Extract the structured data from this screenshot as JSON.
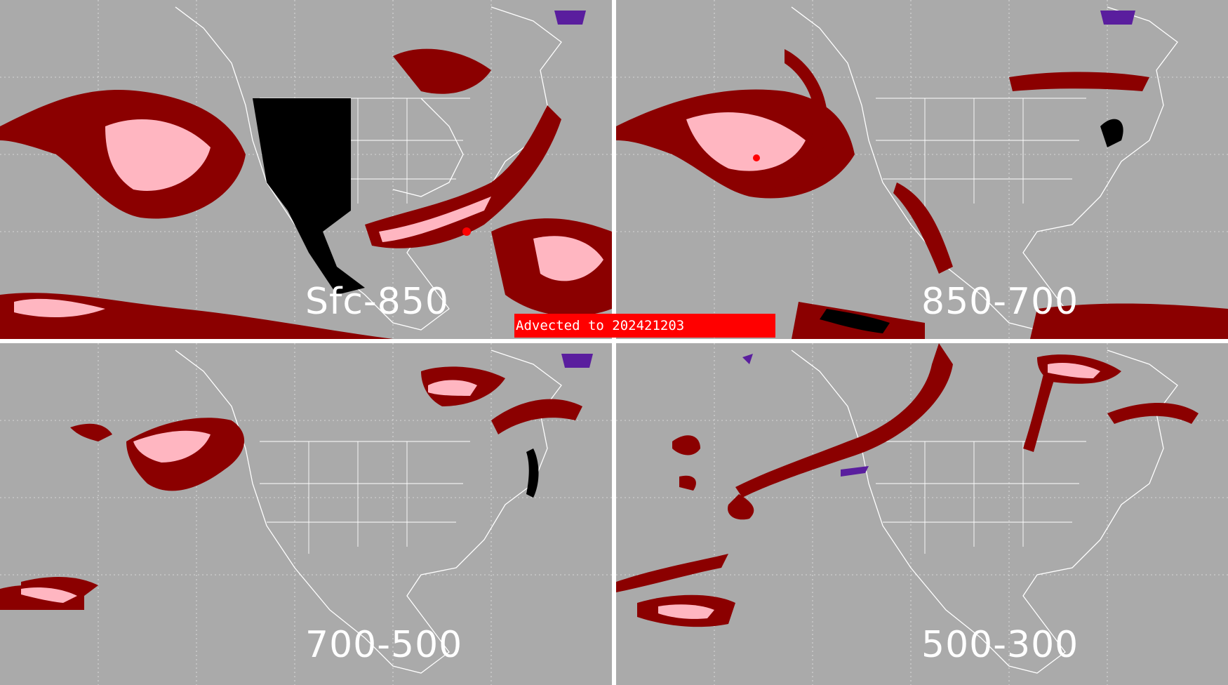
{
  "banner": {
    "text": "Advected to  202421203",
    "color": "#ff0000"
  },
  "panels": [
    {
      "id": "sfc-850",
      "label": "Sfc-850"
    },
    {
      "id": "850-700",
      "label": "850-700"
    },
    {
      "id": "700-500",
      "label": "700-500"
    },
    {
      "id": "500-300",
      "label": "500-300"
    }
  ],
  "colors": {
    "background": "#aaaaaa",
    "dark_red": "#8b0000",
    "pink": "#ffb6c1",
    "red": "#ff0000",
    "black": "#000000",
    "purple": "#5a1e9e",
    "boundary": "#ffffff"
  }
}
